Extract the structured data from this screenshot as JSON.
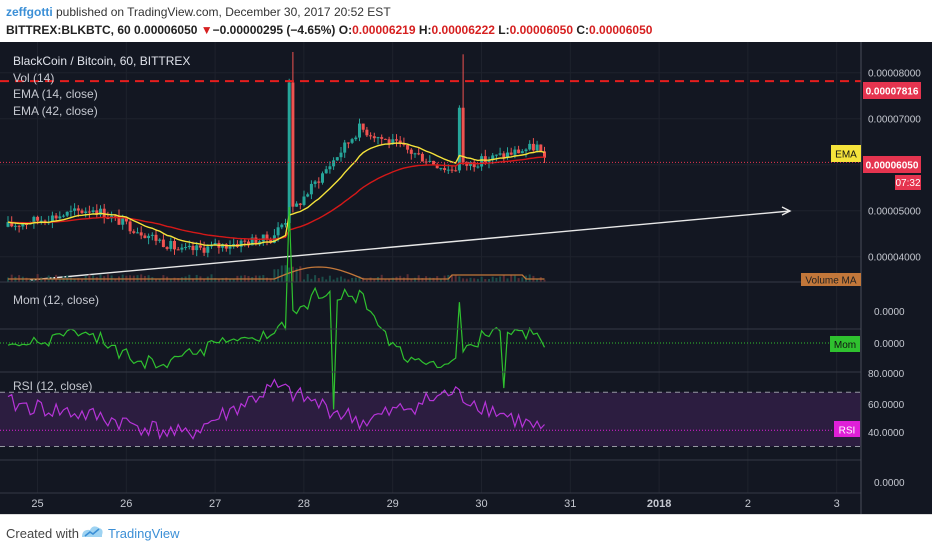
{
  "header": {
    "user": "zeffgotti",
    "published": " published on TradingView.com, December 30, 2017 20:52 EST",
    "symbol": "BITTREX:BLKBTC, 60",
    "last": "0.00006050",
    "change_arrow": "▼",
    "change": "−0.00000295 (−4.65%)",
    "o_label": "O:",
    "o": "0.00006219",
    "h_label": "H:",
    "h": "0.00006222",
    "l_label": "L:",
    "l": "0.00006050",
    "c_label": "C:",
    "c": "0.00006050"
  },
  "price_pane": {
    "title": "BlackCoin / Bitcoin, 60, BITTREX",
    "legend": [
      "Vol (14)",
      "EMA (14, close)",
      "EMA (42, close)"
    ],
    "ema_tag": "EMA",
    "price_tag": "0.00006050",
    "countdown": "07:32",
    "resistance_tag": "0.00007816",
    "volume_tag": "Volume MA"
  },
  "mom_pane": {
    "title": "Mom (12, close)",
    "tag": "Mom",
    "ticks": [
      "0.0000",
      "0.0000"
    ]
  },
  "rsi_pane": {
    "title": "RSI (12, close)",
    "tag": "RSI",
    "ticks": [
      "80.0000",
      "60.0000",
      "40.0000"
    ]
  },
  "lower_tick": "0.0000",
  "footer": {
    "created": "Created with",
    "brand": "TradingView"
  },
  "colors": {
    "background": "#131722",
    "up": "#26a69a",
    "down": "#ef5350",
    "ema14": "#f5e33b",
    "ema42": "#d41818",
    "resistance": "#e51e1e",
    "rsi": "#b634d8",
    "mom": "#2fc12f",
    "volume_ma": "#c2773a",
    "trendline": "#e8e8e8"
  },
  "chart_data": [
    {
      "type": "candlestick",
      "title": "BlackCoin / Bitcoin, 60, BITTREX",
      "x_tick_labels": [
        "25",
        "26",
        "27",
        "28",
        "29",
        "30",
        "31",
        "2018",
        "2",
        "3"
      ],
      "y_tick_labels": [
        "0.00008000",
        "0.00007000",
        "0.00005000",
        "0.00004000"
      ],
      "ylim": [
        3.45e-05,
        8.45e-05
      ],
      "resistance": 7.816e-05,
      "last_price": 6.05e-05,
      "days": [
        {
          "label": "25",
          "open": 4.65e-05,
          "high": 5.3e-05,
          "low": 4.3e-05,
          "close": 5.05e-05
        },
        {
          "label": "26",
          "open": 5.05e-05,
          "high": 5.15e-05,
          "low": 4e-05,
          "close": 4.12e-05
        },
        {
          "label": "27",
          "open": 4.12e-05,
          "high": 4.55e-05,
          "low": 3.78e-05,
          "close": 4.4e-05
        },
        {
          "label": "28",
          "open": 4.4e-05,
          "high": 8.45e-05,
          "low": 4.25e-05,
          "close": 6.8e-05
        },
        {
          "label": "29",
          "open": 6.8e-05,
          "high": 7.05e-05,
          "low": 5.7e-05,
          "close": 5.9e-05
        },
        {
          "label": "30",
          "open": 5.9e-05,
          "high": 8.4e-05,
          "low": 5.8e-05,
          "close": 6.4e-05
        },
        {
          "label": "31",
          "open": 6.4e-05,
          "high": 6.9e-05,
          "low": 6e-05,
          "close": 6.05e-05
        }
      ]
    },
    {
      "type": "line",
      "title": "Mom (12, close)",
      "x": [
        "25",
        "26",
        "27",
        "28",
        "29",
        "30",
        "31"
      ],
      "series": [
        {
          "name": "Mom (12, close)",
          "values": [
            0.3,
            0.1,
            -0.1,
            1.0,
            -0.2,
            0.6,
            0.0
          ]
        }
      ]
    },
    {
      "type": "line",
      "title": "RSI (12, close)",
      "x": [
        "25",
        "26",
        "27",
        "28",
        "29",
        "30",
        "31"
      ],
      "ylim": [
        20,
        85
      ],
      "series": [
        {
          "name": "RSI (12, close)",
          "values": [
            62,
            52,
            38,
            74,
            48,
            70,
            42
          ]
        }
      ]
    }
  ]
}
